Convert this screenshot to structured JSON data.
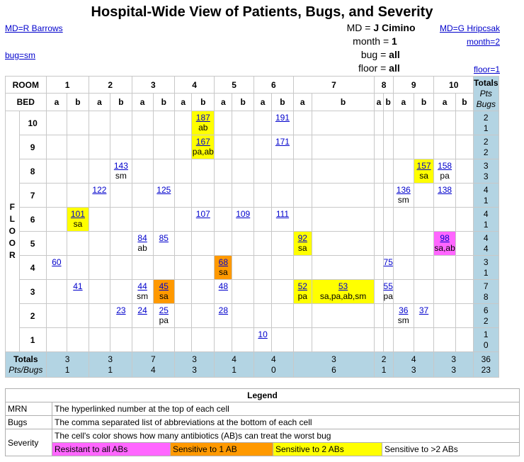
{
  "title": "Hospital-Wide View of Patients, Bugs, and Severity",
  "nav": {
    "md_prev": "MD=R Barrows",
    "md_next": "MD=G Hripcsak",
    "month_next": "month=2",
    "bug_prev": "bug=sm",
    "floor_next": "floor=1"
  },
  "filters": {
    "md_label": "MD =",
    "md_value": "J Cimino",
    "month_label": "month =",
    "month_value": "1",
    "bug_label": "bug =",
    "bug_value": "all",
    "floor_label": "floor =",
    "floor_value": "all"
  },
  "grid": {
    "room_label": "ROOM",
    "bed_label": "BED",
    "floor_label": "FLOOR",
    "rooms": [
      "1",
      "2",
      "3",
      "4",
      "5",
      "6",
      "7",
      "8",
      "9",
      "10"
    ],
    "beds": [
      "a",
      "b"
    ],
    "totals_label": "Totals",
    "pts_label": "Pts",
    "bugs_label": "Bugs",
    "totals_row_label": "Totals",
    "pts_bugs_label": "Pts/Bugs",
    "floors": [
      {
        "floor": "10",
        "cells": [
          null,
          null,
          null,
          null,
          null,
          null,
          null,
          {
            "mrn": "187",
            "bugs": "ab",
            "sev": "yel"
          },
          null,
          null,
          null,
          {
            "mrn": "191"
          },
          null,
          null,
          null,
          null,
          null,
          null,
          null,
          null
        ],
        "pts": "2",
        "bugs": "1"
      },
      {
        "floor": "9",
        "cells": [
          null,
          null,
          null,
          null,
          null,
          null,
          null,
          {
            "mrn": "167",
            "bugs": "pa,ab",
            "sev": "yel"
          },
          null,
          null,
          null,
          {
            "mrn": "171"
          },
          null,
          null,
          null,
          null,
          null,
          null,
          null,
          null
        ],
        "pts": "2",
        "bugs": "2"
      },
      {
        "floor": "8",
        "cells": [
          null,
          null,
          null,
          {
            "mrn": "143",
            "bugs": "sm"
          },
          null,
          null,
          null,
          null,
          null,
          null,
          null,
          null,
          null,
          null,
          null,
          null,
          null,
          {
            "mrn": "157",
            "bugs": "sa",
            "sev": "yel"
          },
          {
            "mrn": "158",
            "bugs": "pa"
          },
          null
        ],
        "pts": "3",
        "bugs": "3"
      },
      {
        "floor": "7",
        "cells": [
          null,
          null,
          {
            "mrn": "122"
          },
          null,
          null,
          {
            "mrn": "125"
          },
          null,
          null,
          null,
          null,
          null,
          null,
          null,
          null,
          null,
          null,
          {
            "mrn": "136",
            "bugs": "sm"
          },
          null,
          {
            "mrn": "138"
          },
          null
        ],
        "pts": "4",
        "bugs": "1"
      },
      {
        "floor": "6",
        "cells": [
          null,
          {
            "mrn": "101",
            "bugs": "sa",
            "sev": "yel"
          },
          null,
          null,
          null,
          null,
          null,
          {
            "mrn": "107"
          },
          null,
          {
            "mrn": "109"
          },
          null,
          {
            "mrn": "111"
          },
          null,
          null,
          null,
          null,
          null,
          null,
          null,
          null
        ],
        "pts": "4",
        "bugs": "1"
      },
      {
        "floor": "5",
        "cells": [
          null,
          null,
          null,
          null,
          {
            "mrn": "84",
            "bugs": "ab"
          },
          {
            "mrn": "85"
          },
          null,
          null,
          null,
          null,
          null,
          null,
          {
            "mrn": "92",
            "bugs": "sa",
            "sev": "yel"
          },
          null,
          null,
          null,
          null,
          null,
          {
            "mrn": "98",
            "bugs": "sa,ab",
            "sev": "mag"
          },
          null
        ],
        "pts": "4",
        "bugs": "4"
      },
      {
        "floor": "4",
        "cells": [
          {
            "mrn": "60"
          },
          null,
          null,
          null,
          null,
          null,
          null,
          null,
          {
            "mrn": "68",
            "bugs": "sa",
            "sev": "org"
          },
          null,
          null,
          null,
          null,
          null,
          null,
          {
            "mrn": "75"
          },
          null,
          null,
          null,
          null
        ],
        "pts": "3",
        "bugs": "1"
      },
      {
        "floor": "3",
        "cells": [
          null,
          {
            "mrn": "41"
          },
          null,
          null,
          {
            "mrn": "44",
            "bugs": "sm"
          },
          {
            "mrn": "45",
            "bugs": "sa",
            "sev": "org"
          },
          null,
          null,
          {
            "mrn": "48"
          },
          null,
          null,
          null,
          {
            "mrn": "52",
            "bugs": "pa",
            "sev": "yel"
          },
          {
            "mrn": "53",
            "bugs": "sa,pa,ab,sm",
            "sev": "yel"
          },
          null,
          {
            "mrn": "55",
            "bugs": "pa"
          },
          null,
          null,
          null,
          null
        ],
        "pts": "7",
        "bugs": "8"
      },
      {
        "floor": "2",
        "cells": [
          null,
          null,
          null,
          {
            "mrn": "23"
          },
          {
            "mrn": "24"
          },
          {
            "mrn": "25",
            "bugs": "pa"
          },
          null,
          null,
          {
            "mrn": "28"
          },
          null,
          null,
          null,
          null,
          null,
          null,
          null,
          {
            "mrn": "36",
            "bugs": "sm"
          },
          {
            "mrn": "37"
          },
          null,
          null
        ],
        "pts": "6",
        "bugs": "2"
      },
      {
        "floor": "1",
        "cells": [
          null,
          null,
          null,
          null,
          null,
          null,
          null,
          null,
          null,
          null,
          {
            "mrn": "10"
          },
          null,
          null,
          null,
          null,
          null,
          null,
          null,
          null,
          null
        ],
        "pts": "1",
        "bugs": "0"
      }
    ],
    "room_totals": [
      {
        "pts": "3",
        "bugs": "1"
      },
      {
        "pts": "3",
        "bugs": "1"
      },
      {
        "pts": "7",
        "bugs": "4"
      },
      {
        "pts": "3",
        "bugs": "3"
      },
      {
        "pts": "4",
        "bugs": "1"
      },
      {
        "pts": "4",
        "bugs": "0"
      },
      {
        "pts": "3",
        "bugs": "6"
      },
      {
        "pts": "2",
        "bugs": "1"
      },
      {
        "pts": "4",
        "bugs": "3"
      },
      {
        "pts": "3",
        "bugs": "3"
      }
    ],
    "grand_total": {
      "pts": "36",
      "bugs": "23"
    }
  },
  "legend": {
    "title": "Legend",
    "mrn_label": "MRN",
    "mrn_desc": "The hyperlinked number at the top of each cell",
    "bugs_label": "Bugs",
    "bugs_desc": "The comma separated list of abbreviations at the bottom of each cell",
    "severity_label": "Severity",
    "severity_desc": "The cell's color shows how many antibiotics (AB)s can treat the worst bug",
    "sev_resistant": "Resistant to all ABs",
    "sev_one": "Sensitive to 1 AB",
    "sev_two": "Sensitive to 2 ABs",
    "sev_more": "Sensitive to >2 ABs",
    "colors": {
      "resistant": "#ff66ff",
      "one": "#ff9900",
      "two": "#ffff00",
      "more": "#ffffff"
    }
  }
}
